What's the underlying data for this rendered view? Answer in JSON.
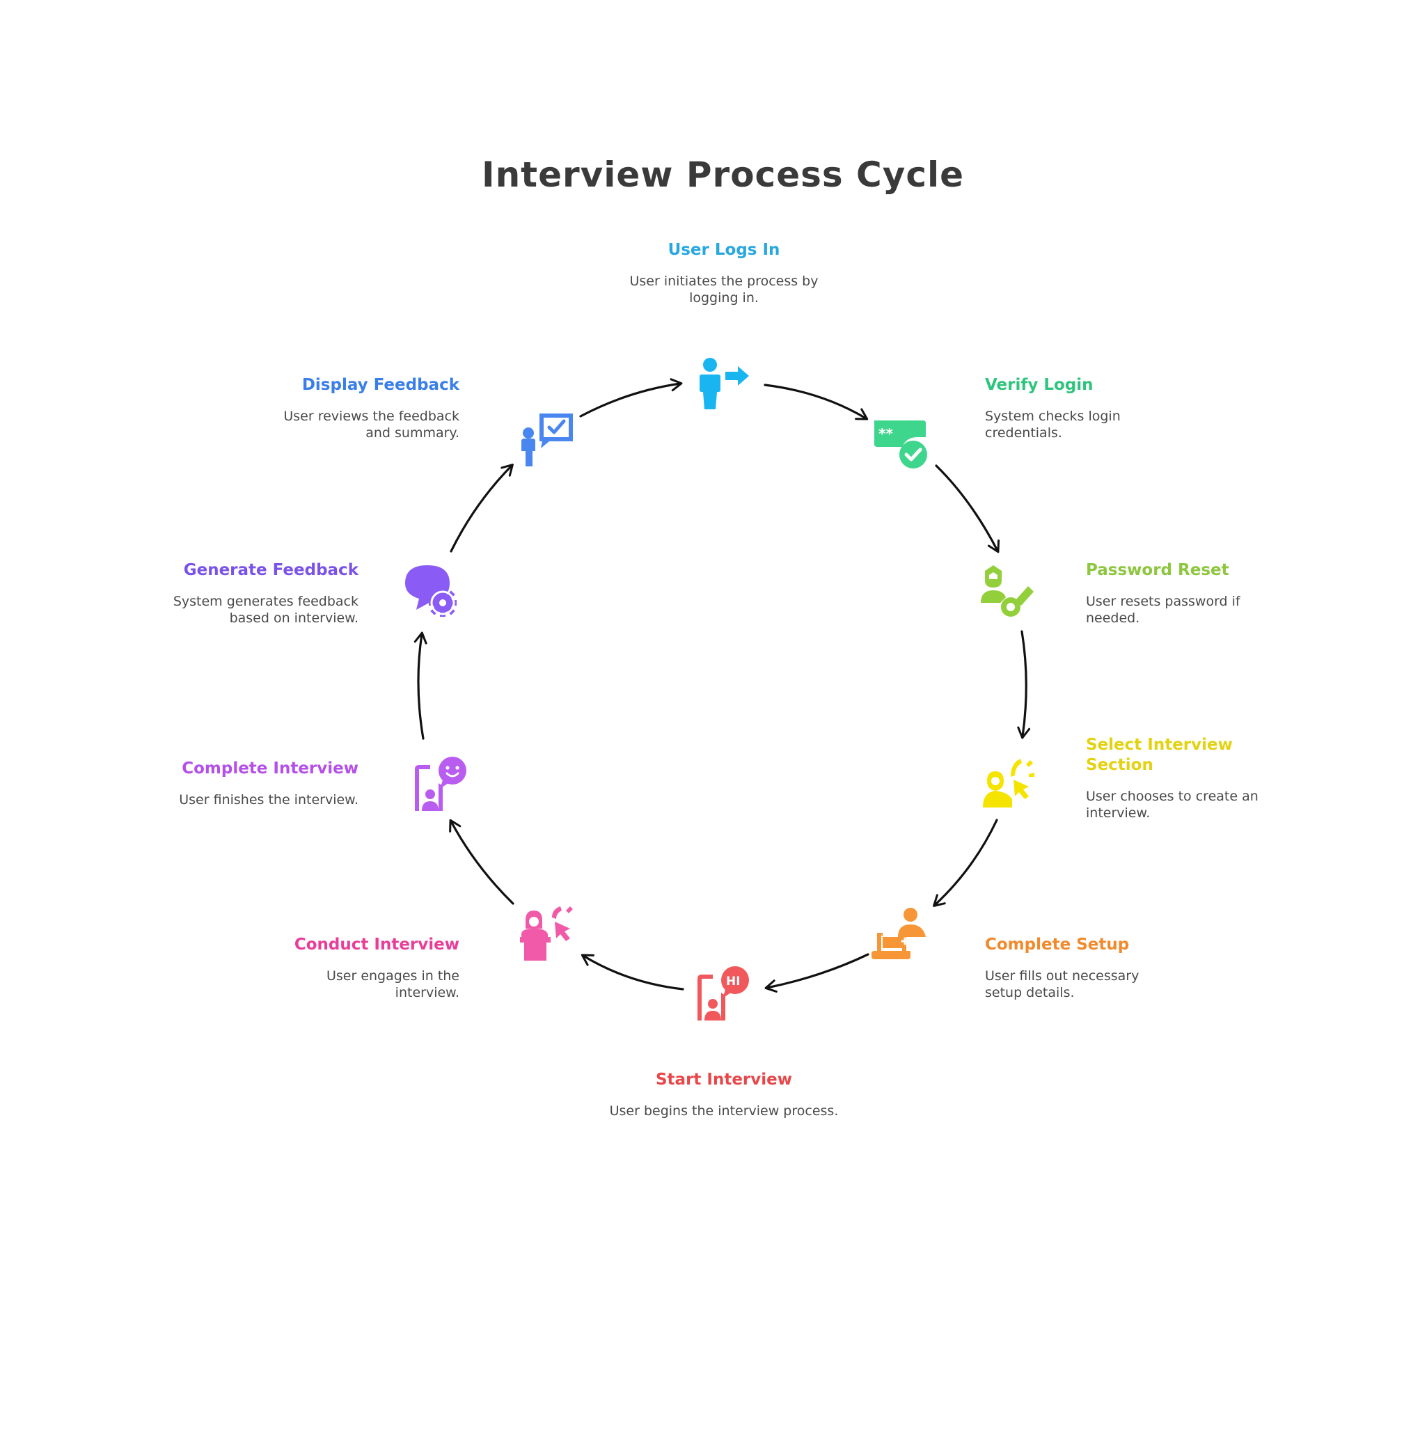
{
  "title": "Interview Process Cycle",
  "colors": {
    "arrow": "#111111",
    "title": "#3a3a3a",
    "description": "#4a4a4a"
  },
  "steps": [
    {
      "title": "User Logs In",
      "description": "User initiates the process by logging in.",
      "color": "#29a8e0",
      "icon_color": "#19b5f0",
      "icon": "user-login-icon"
    },
    {
      "title": "Verify Login",
      "description": "System checks login credentials.",
      "color": "#2fc47e",
      "icon_color": "#3ed68c",
      "icon": "credential-check-icon"
    },
    {
      "title": "Password Reset",
      "description": "User resets password if needed.",
      "color": "#8dc63f",
      "icon_color": "#93cf3a",
      "icon": "user-key-icon"
    },
    {
      "title": "Select Interview Section",
      "description": "User chooses to create an interview.",
      "color": "#e3d210",
      "icon_color": "#f5e300",
      "icon": "user-pointer-icon"
    },
    {
      "title": "Complete Setup",
      "description": "User fills out necessary setup details.",
      "color": "#f08a2c",
      "icon_color": "#f79637",
      "icon": "user-laptop-icon"
    },
    {
      "title": "Start Interview",
      "description": "User begins the interview process.",
      "color": "#e8474a",
      "icon_color": "#f0585b",
      "icon": "hi-speech-icon"
    },
    {
      "title": "Conduct Interview",
      "description": "User engages in the interview.",
      "color": "#e83e9a",
      "icon_color": "#f15aa8",
      "icon": "speaker-podium-icon"
    },
    {
      "title": "Complete Interview",
      "description": "User finishes the interview.",
      "color": "#b44fe8",
      "icon_color": "#b95cf0",
      "icon": "smiley-speech-icon"
    },
    {
      "title": "Generate Feedback",
      "description": "System generates feedback based on interview.",
      "color": "#7b52e8",
      "icon_color": "#8a5cf5",
      "icon": "chat-gear-icon"
    },
    {
      "title": "Display Feedback",
      "description": "User reviews the feedback and summary.",
      "color": "#3a7ee8",
      "icon_color": "#4a86f0",
      "icon": "user-checkmark-board-icon"
    }
  ]
}
